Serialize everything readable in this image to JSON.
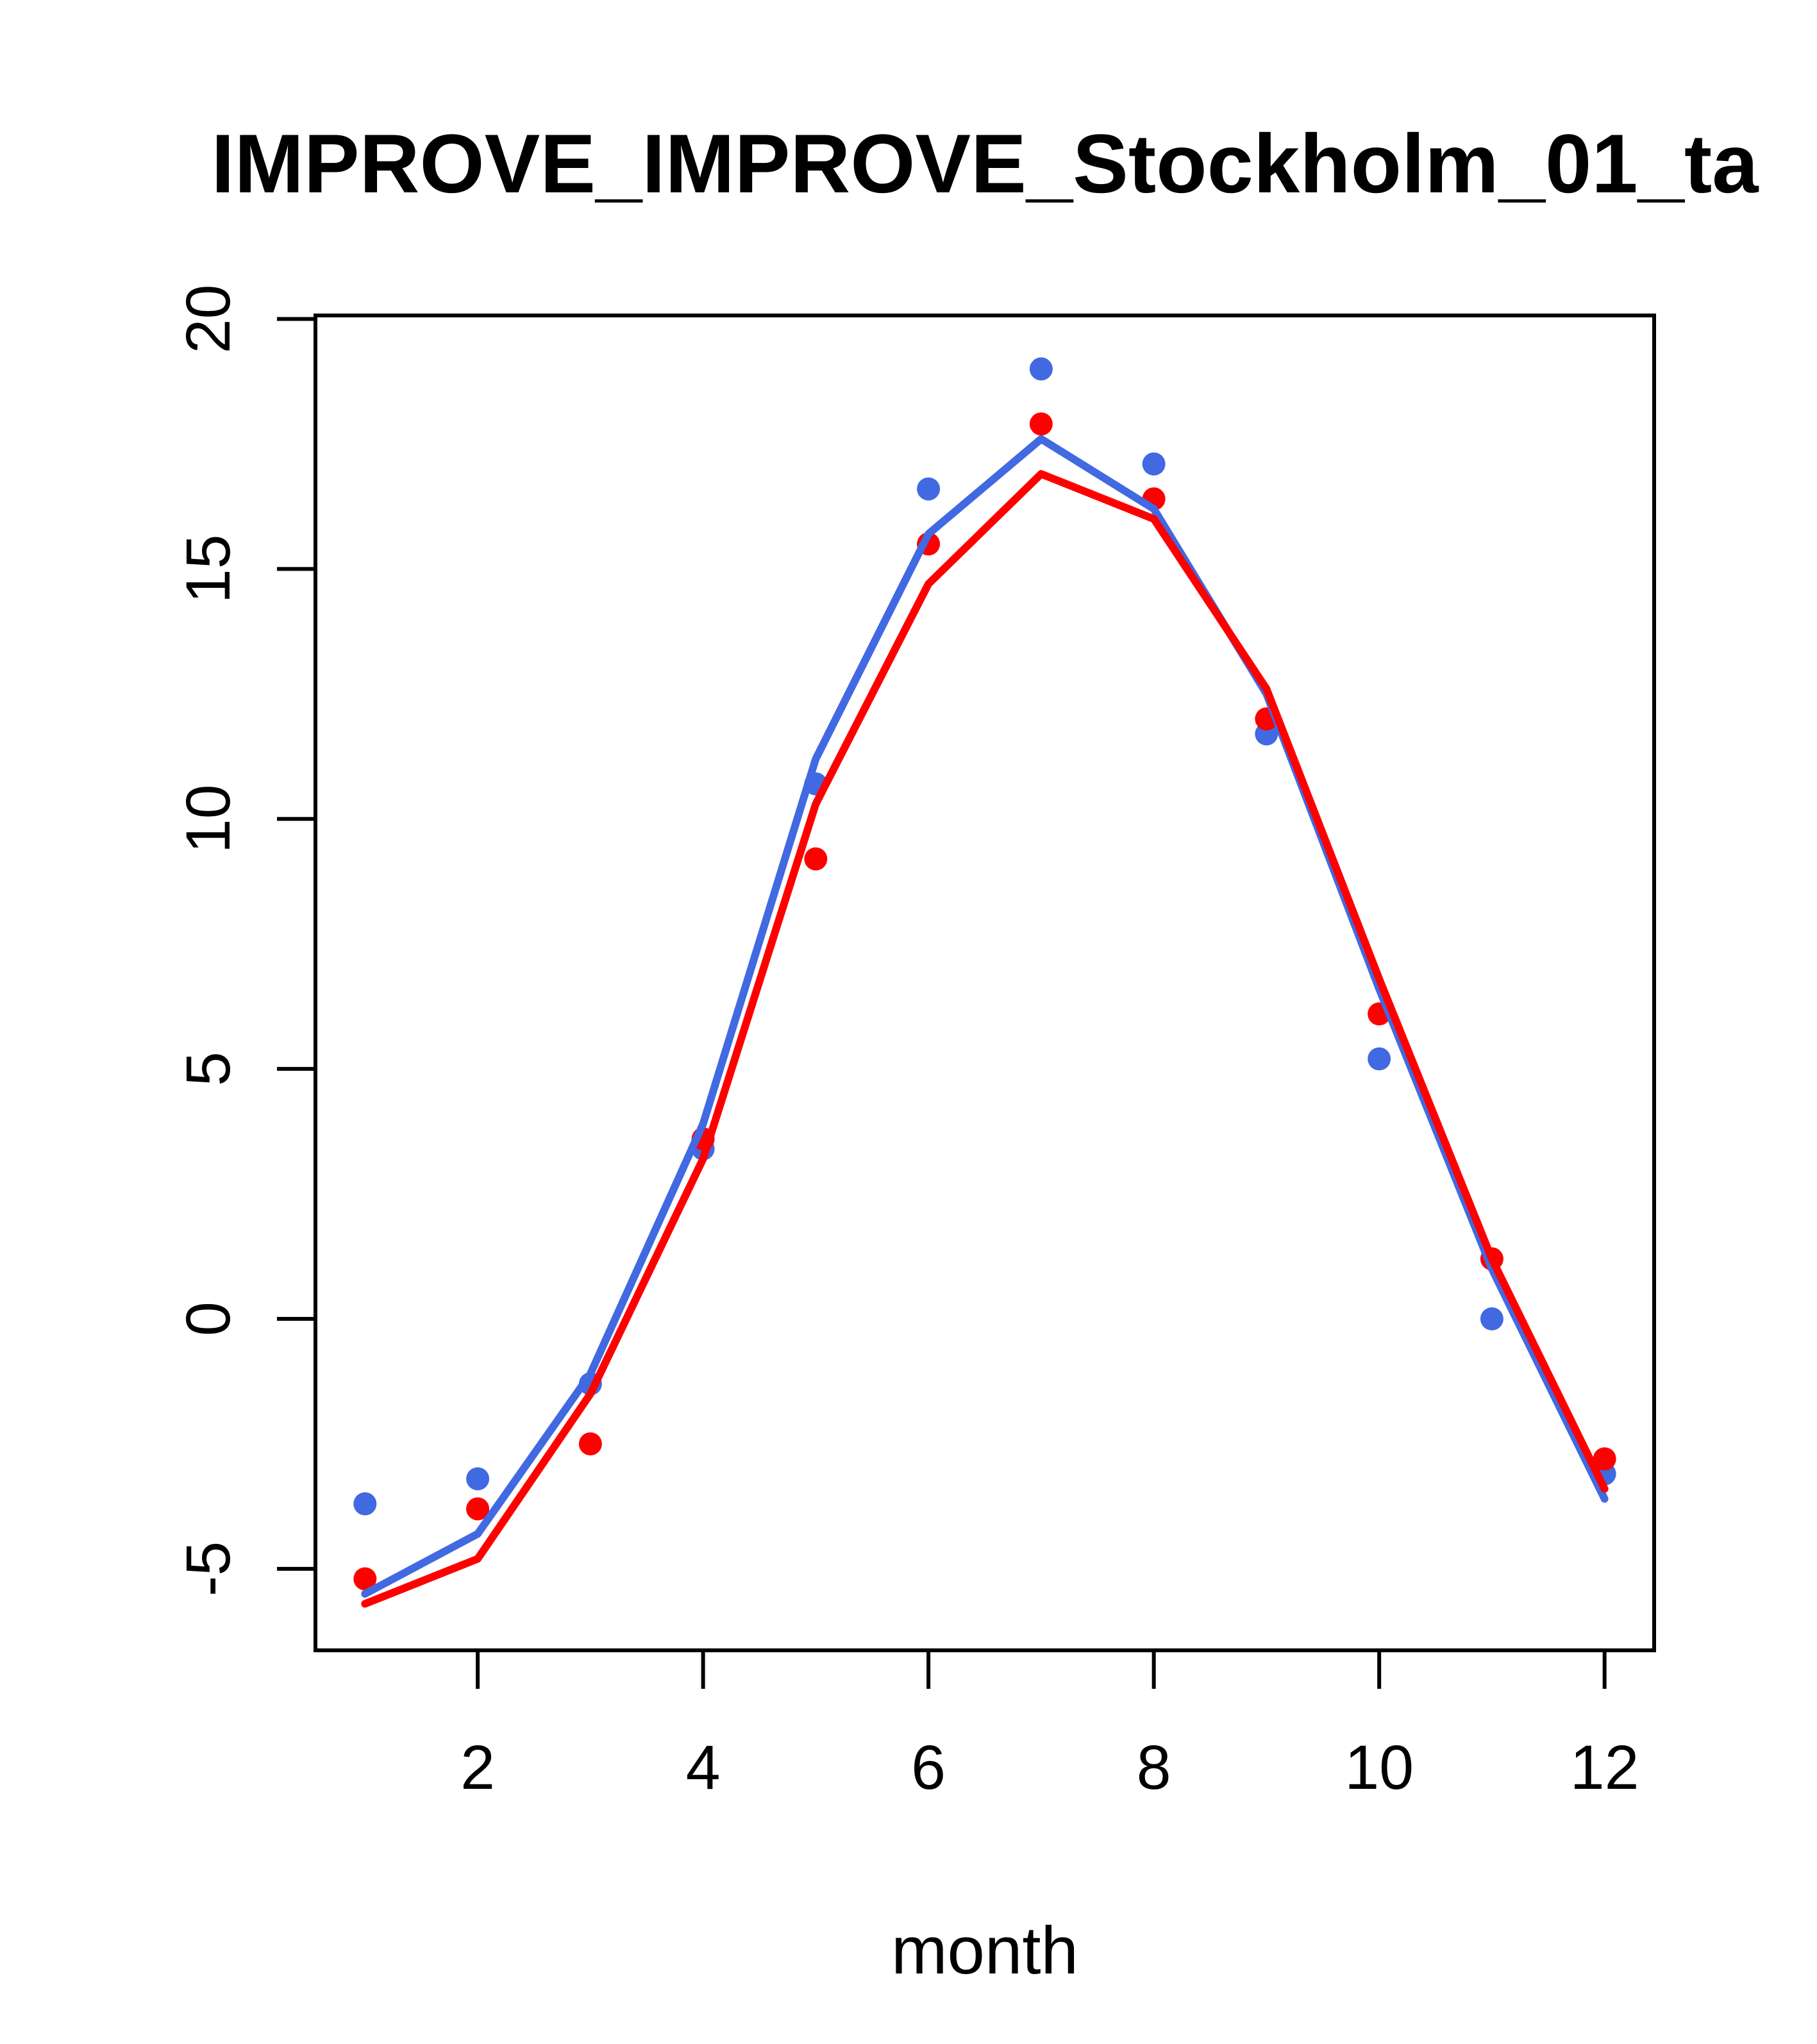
{
  "title": "IMPROVE_IMPROVE_Stockholm_01_ta",
  "colors": {
    "blue": "#4169E1",
    "red": "#FF0000",
    "axis": "#000000",
    "background": "#FFFFFF"
  },
  "chart_data": {
    "type": "line",
    "title": "IMPROVE_IMPROVE_Stockholm_01_ta",
    "xlabel": "month",
    "ylabel": "",
    "x": [
      1,
      2,
      3,
      4,
      5,
      6,
      7,
      8,
      9,
      10,
      11,
      12
    ],
    "xlim": [
      0.56,
      12.44
    ],
    "ylim": [
      -6.63,
      20.07
    ],
    "xticks": [
      2,
      4,
      6,
      8,
      10,
      12
    ],
    "yticks": [
      -5,
      0,
      5,
      10,
      15,
      20
    ],
    "grid": false,
    "legend": "none",
    "series": [
      {
        "name": "blue-line",
        "type": "line",
        "color": "#4169E1",
        "values": [
          -5.5,
          -4.3,
          -1.1,
          3.9,
          11.2,
          15.7,
          17.6,
          16.2,
          12.5,
          6.6,
          1.0,
          -3.6
        ]
      },
      {
        "name": "red-line",
        "type": "line",
        "color": "#FF0000",
        "values": [
          -5.7,
          -4.8,
          -1.5,
          3.2,
          10.3,
          14.7,
          16.9,
          16.0,
          12.6,
          6.8,
          1.2,
          -3.4
        ]
      },
      {
        "name": "blue-points",
        "type": "scatter",
        "color": "#4169E1",
        "values": [
          -3.7,
          -3.2,
          -1.3,
          3.4,
          10.7,
          16.6,
          19.0,
          17.1,
          11.7,
          5.2,
          0.0,
          -3.1
        ]
      },
      {
        "name": "red-points",
        "type": "scatter",
        "color": "#FF0000",
        "values": [
          -5.2,
          -3.8,
          -2.5,
          3.6,
          9.2,
          15.5,
          17.9,
          16.4,
          12.0,
          6.1,
          1.2,
          -2.8
        ]
      }
    ]
  }
}
